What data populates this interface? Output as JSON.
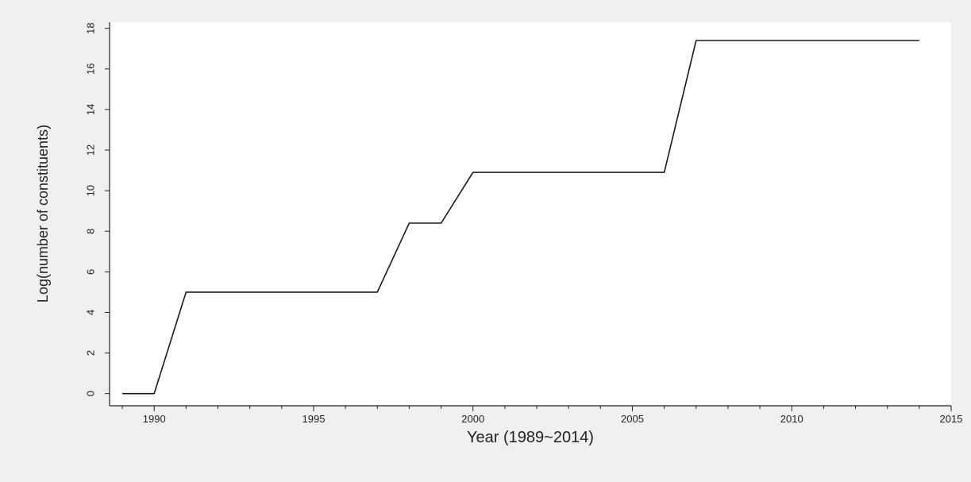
{
  "chart_data": {
    "type": "line",
    "xlabel": "Year (1989~2014)",
    "ylabel": "Log(number of constituents)",
    "xlim": [
      1988.6,
      2015
    ],
    "ylim": [
      -0.6,
      18.3
    ],
    "x_ticks_major": [
      1990,
      1995,
      2000,
      2005,
      2010,
      2015
    ],
    "x_tick_labels": [
      "1990",
      "1995",
      "2000",
      "2005",
      "2010",
      "2015"
    ],
    "x_ticks_minor_step": 1,
    "y_ticks": [
      0,
      2,
      4,
      6,
      8,
      10,
      12,
      14,
      16,
      18
    ],
    "y_tick_labels": [
      "0",
      "2",
      "4",
      "6",
      "8",
      "10",
      "12",
      "14",
      "16",
      "18"
    ],
    "grid": false,
    "legend": "none",
    "series": [
      {
        "x": [
          1989,
          1990,
          1991,
          1992,
          1993,
          1994,
          1995,
          1996,
          1997,
          1998,
          1999,
          2000,
          2001,
          2002,
          2003,
          2004,
          2005,
          2006,
          2007,
          2008,
          2009,
          2010,
          2011,
          2012,
          2013,
          2014
        ],
        "y": [
          0,
          0,
          5,
          5,
          5,
          5,
          5,
          5,
          5,
          8.4,
          8.4,
          10.9,
          10.9,
          10.9,
          10.9,
          10.9,
          10.9,
          10.9,
          17.4,
          17.4,
          17.4,
          17.4,
          17.4,
          17.4,
          17.4,
          17.4
        ]
      }
    ],
    "colors": {
      "plot_background": "#ffffff",
      "page_background": "#f0f0f0",
      "line": "#1a1a1a"
    }
  }
}
